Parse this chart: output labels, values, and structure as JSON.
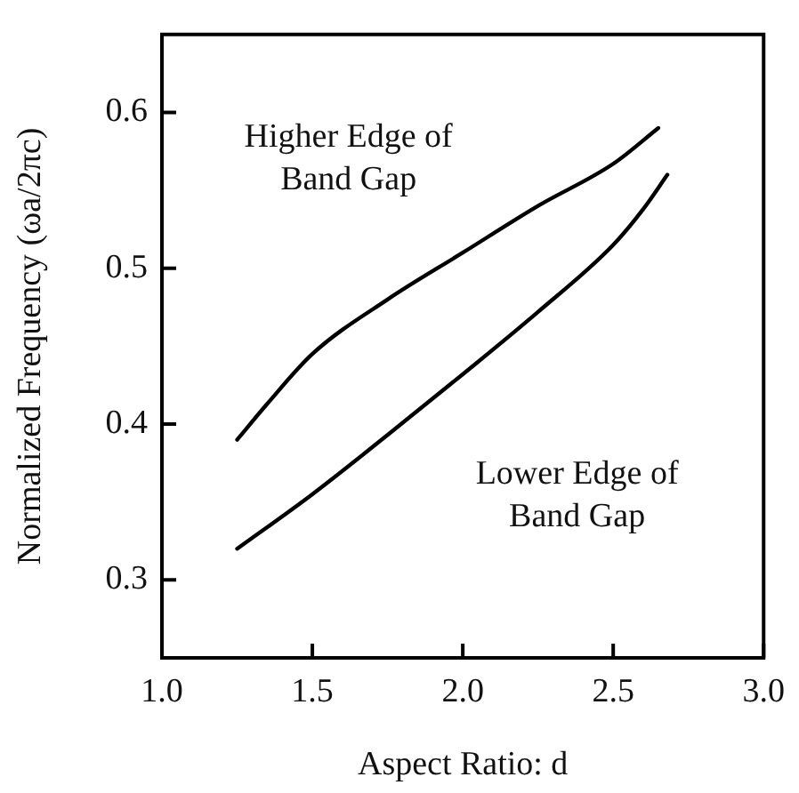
{
  "chart_data": {
    "type": "line",
    "xlabel": "Aspect Ratio: d",
    "ylabel": "Normalized Frequency (ωa/2πc)",
    "xlim": [
      1.0,
      3.0
    ],
    "xticks": [
      {
        "value": 1.0,
        "label": "1.0"
      },
      {
        "value": 1.5,
        "label": "1.5"
      },
      {
        "value": 2.0,
        "label": "2.0"
      },
      {
        "value": 2.5,
        "label": "2.5"
      },
      {
        "value": 3.0,
        "label": "3.0"
      }
    ],
    "ylim": [
      0.25,
      0.65
    ],
    "yticks": [
      {
        "value": 0.3,
        "label": "0.3"
      },
      {
        "value": 0.4,
        "label": "0.4"
      },
      {
        "value": 0.5,
        "label": "0.5"
      },
      {
        "value": 0.6,
        "label": "0.6"
      }
    ],
    "grid": false,
    "legend": false,
    "marker": "none",
    "line_style": "solid",
    "series": [
      {
        "name": "Higher Edge of Band Gap",
        "color": "#000000",
        "x": [
          1.25,
          1.35,
          1.5,
          1.75,
          2.0,
          2.25,
          2.5,
          2.65
        ],
        "values": [
          0.39,
          0.413,
          0.445,
          0.48,
          0.51,
          0.54,
          0.567,
          0.59
        ]
      },
      {
        "name": "Lower Edge of Band Gap",
        "color": "#000000",
        "x": [
          1.25,
          1.5,
          1.75,
          2.0,
          2.25,
          2.5,
          2.6,
          2.68
        ],
        "values": [
          0.32,
          0.355,
          0.393,
          0.432,
          0.472,
          0.515,
          0.538,
          0.56
        ]
      }
    ]
  }
}
